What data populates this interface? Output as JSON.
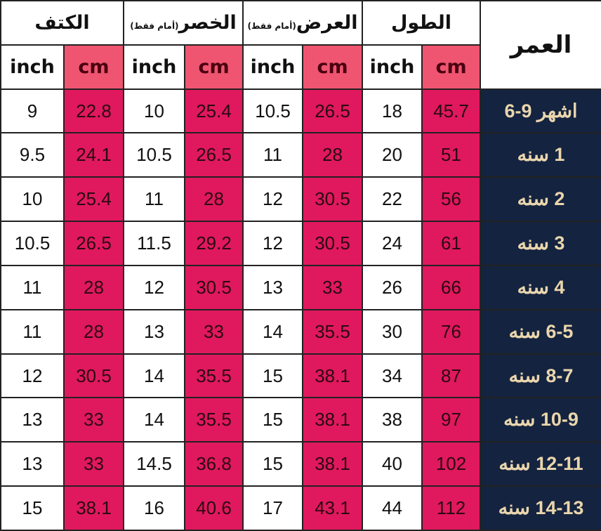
{
  "headers": {
    "age": "العمر",
    "shoulder": {
      "main": "الكتف",
      "note": ""
    },
    "waist": {
      "main": "الخصر",
      "note": "(أمام فقط)"
    },
    "width": {
      "main": "العرض",
      "note": "(أمام فقط)"
    },
    "length": {
      "main": "الطول",
      "note": ""
    },
    "inch": "inch",
    "cm": "cm"
  },
  "colors": {
    "age_bg": "#14233f",
    "cm_bg": "#e0185e",
    "cm_header_bg": "#ef5570",
    "age_text": "#ead6ad"
  },
  "rows": [
    {
      "age": "6-9 اشهر",
      "shoulder_in": "9",
      "shoulder_cm": "22.8",
      "waist_in": "10",
      "waist_cm": "25.4",
      "width_in": "10.5",
      "width_cm": "26.5",
      "length_in": "18",
      "length_cm": "45.7"
    },
    {
      "age": "1 سنه",
      "shoulder_in": "9.5",
      "shoulder_cm": "24.1",
      "waist_in": "10.5",
      "waist_cm": "26.5",
      "width_in": "11",
      "width_cm": "28",
      "length_in": "20",
      "length_cm": "51"
    },
    {
      "age": "2 سنه",
      "shoulder_in": "10",
      "shoulder_cm": "25.4",
      "waist_in": "11",
      "waist_cm": "28",
      "width_in": "12",
      "width_cm": "30.5",
      "length_in": "22",
      "length_cm": "56"
    },
    {
      "age": "3 سنه",
      "shoulder_in": "10.5",
      "shoulder_cm": "26.5",
      "waist_in": "11.5",
      "waist_cm": "29.2",
      "width_in": "12",
      "width_cm": "30.5",
      "length_in": "24",
      "length_cm": "61"
    },
    {
      "age": "4 سنه",
      "shoulder_in": "11",
      "shoulder_cm": "28",
      "waist_in": "12",
      "waist_cm": "30.5",
      "width_in": "13",
      "width_cm": "33",
      "length_in": "26",
      "length_cm": "66"
    },
    {
      "age": "6-5 سنه",
      "shoulder_in": "11",
      "shoulder_cm": "28",
      "waist_in": "13",
      "waist_cm": "33",
      "width_in": "14",
      "width_cm": "35.5",
      "length_in": "30",
      "length_cm": "76"
    },
    {
      "age": "8-7 سنه",
      "shoulder_in": "12",
      "shoulder_cm": "30.5",
      "waist_in": "14",
      "waist_cm": "35.5",
      "width_in": "15",
      "width_cm": "38.1",
      "length_in": "34",
      "length_cm": "87"
    },
    {
      "age": "10-9 سنه",
      "shoulder_in": "13",
      "shoulder_cm": "33",
      "waist_in": "14",
      "waist_cm": "35.5",
      "width_in": "15",
      "width_cm": "38.1",
      "length_in": "38",
      "length_cm": "97"
    },
    {
      "age": "12-11 سنه",
      "shoulder_in": "13",
      "shoulder_cm": "33",
      "waist_in": "14.5",
      "waist_cm": "36.8",
      "width_in": "15",
      "width_cm": "38.1",
      "length_in": "40",
      "length_cm": "102"
    },
    {
      "age": "14-13 سنه",
      "shoulder_in": "15",
      "shoulder_cm": "38.1",
      "waist_in": "16",
      "waist_cm": "40.6",
      "width_in": "17",
      "width_cm": "43.1",
      "length_in": "44",
      "length_cm": "112"
    }
  ]
}
